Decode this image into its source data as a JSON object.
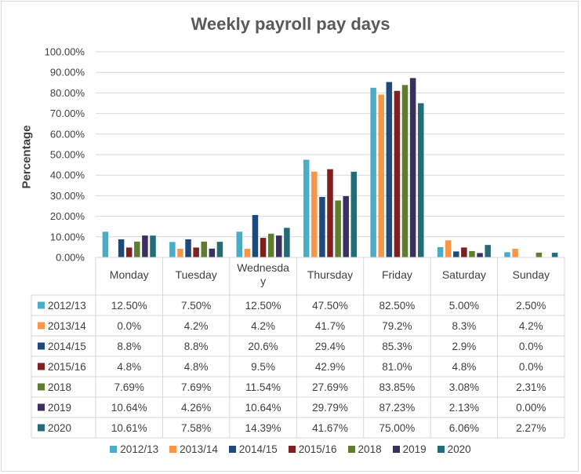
{
  "chart_data": {
    "type": "bar",
    "title": "Weekly payroll pay days",
    "ylabel": "Percentage",
    "xlabel": "",
    "ylim": [
      0,
      100
    ],
    "yticks": [
      "0.00%",
      "10.00%",
      "20.00%",
      "30.00%",
      "40.00%",
      "50.00%",
      "60.00%",
      "70.00%",
      "80.00%",
      "90.00%",
      "100.00%"
    ],
    "categories": [
      "Monday",
      "Tuesday",
      "Wednesday",
      "Thursday",
      "Friday",
      "Saturday",
      "Sunday"
    ],
    "category_display": [
      "Monday",
      "Tuesday",
      "Wednesda\ny",
      "Thursday",
      "Friday",
      "Saturday",
      "Sunday"
    ],
    "grid": true,
    "legend_position": "bottom",
    "data_table": true,
    "series": [
      {
        "name": "2012/13",
        "color": "#4bacc6",
        "values": [
          12.5,
          7.5,
          12.5,
          47.5,
          82.5,
          5.0,
          2.5
        ],
        "table": [
          "12.50%",
          "7.50%",
          "12.50%",
          "47.50%",
          "82.50%",
          "5.00%",
          "2.50%"
        ]
      },
      {
        "name": "2013/14",
        "color": "#f79646",
        "values": [
          0.0,
          4.2,
          4.2,
          41.7,
          79.2,
          8.3,
          4.2
        ],
        "table": [
          "0.0%",
          "4.2%",
          "4.2%",
          "41.7%",
          "79.2%",
          "8.3%",
          "4.2%"
        ]
      },
      {
        "name": "2014/15",
        "color": "#1f497d",
        "values": [
          8.8,
          8.8,
          20.6,
          29.4,
          85.3,
          2.9,
          0.0
        ],
        "table": [
          "8.8%",
          "8.8%",
          "20.6%",
          "29.4%",
          "85.3%",
          "2.9%",
          "0.0%"
        ]
      },
      {
        "name": "2015/16",
        "color": "#7f1f1f",
        "values": [
          4.8,
          4.8,
          9.5,
          42.9,
          81.0,
          4.8,
          0.0
        ],
        "table": [
          "4.8%",
          "4.8%",
          "9.5%",
          "42.9%",
          "81.0%",
          "4.8%",
          "0.0%"
        ]
      },
      {
        "name": "2018",
        "color": "#5f7d2f",
        "values": [
          7.69,
          7.69,
          11.54,
          27.69,
          83.85,
          3.08,
          2.31
        ],
        "table": [
          "7.69%",
          "7.69%",
          "11.54%",
          "27.69%",
          "83.85%",
          "3.08%",
          "2.31%"
        ]
      },
      {
        "name": "2019",
        "color": "#3b2f5f",
        "values": [
          10.64,
          4.26,
          10.64,
          29.79,
          87.23,
          2.13,
          0.0
        ],
        "table": [
          "10.64%",
          "4.26%",
          "10.64%",
          "29.79%",
          "87.23%",
          "2.13%",
          "0.00%"
        ]
      },
      {
        "name": "2020",
        "color": "#236b76",
        "values": [
          10.61,
          7.58,
          14.39,
          41.67,
          75.0,
          6.06,
          2.27
        ],
        "table": [
          "10.61%",
          "7.58%",
          "14.39%",
          "41.67%",
          "75.00%",
          "6.06%",
          "2.27%"
        ]
      }
    ]
  }
}
